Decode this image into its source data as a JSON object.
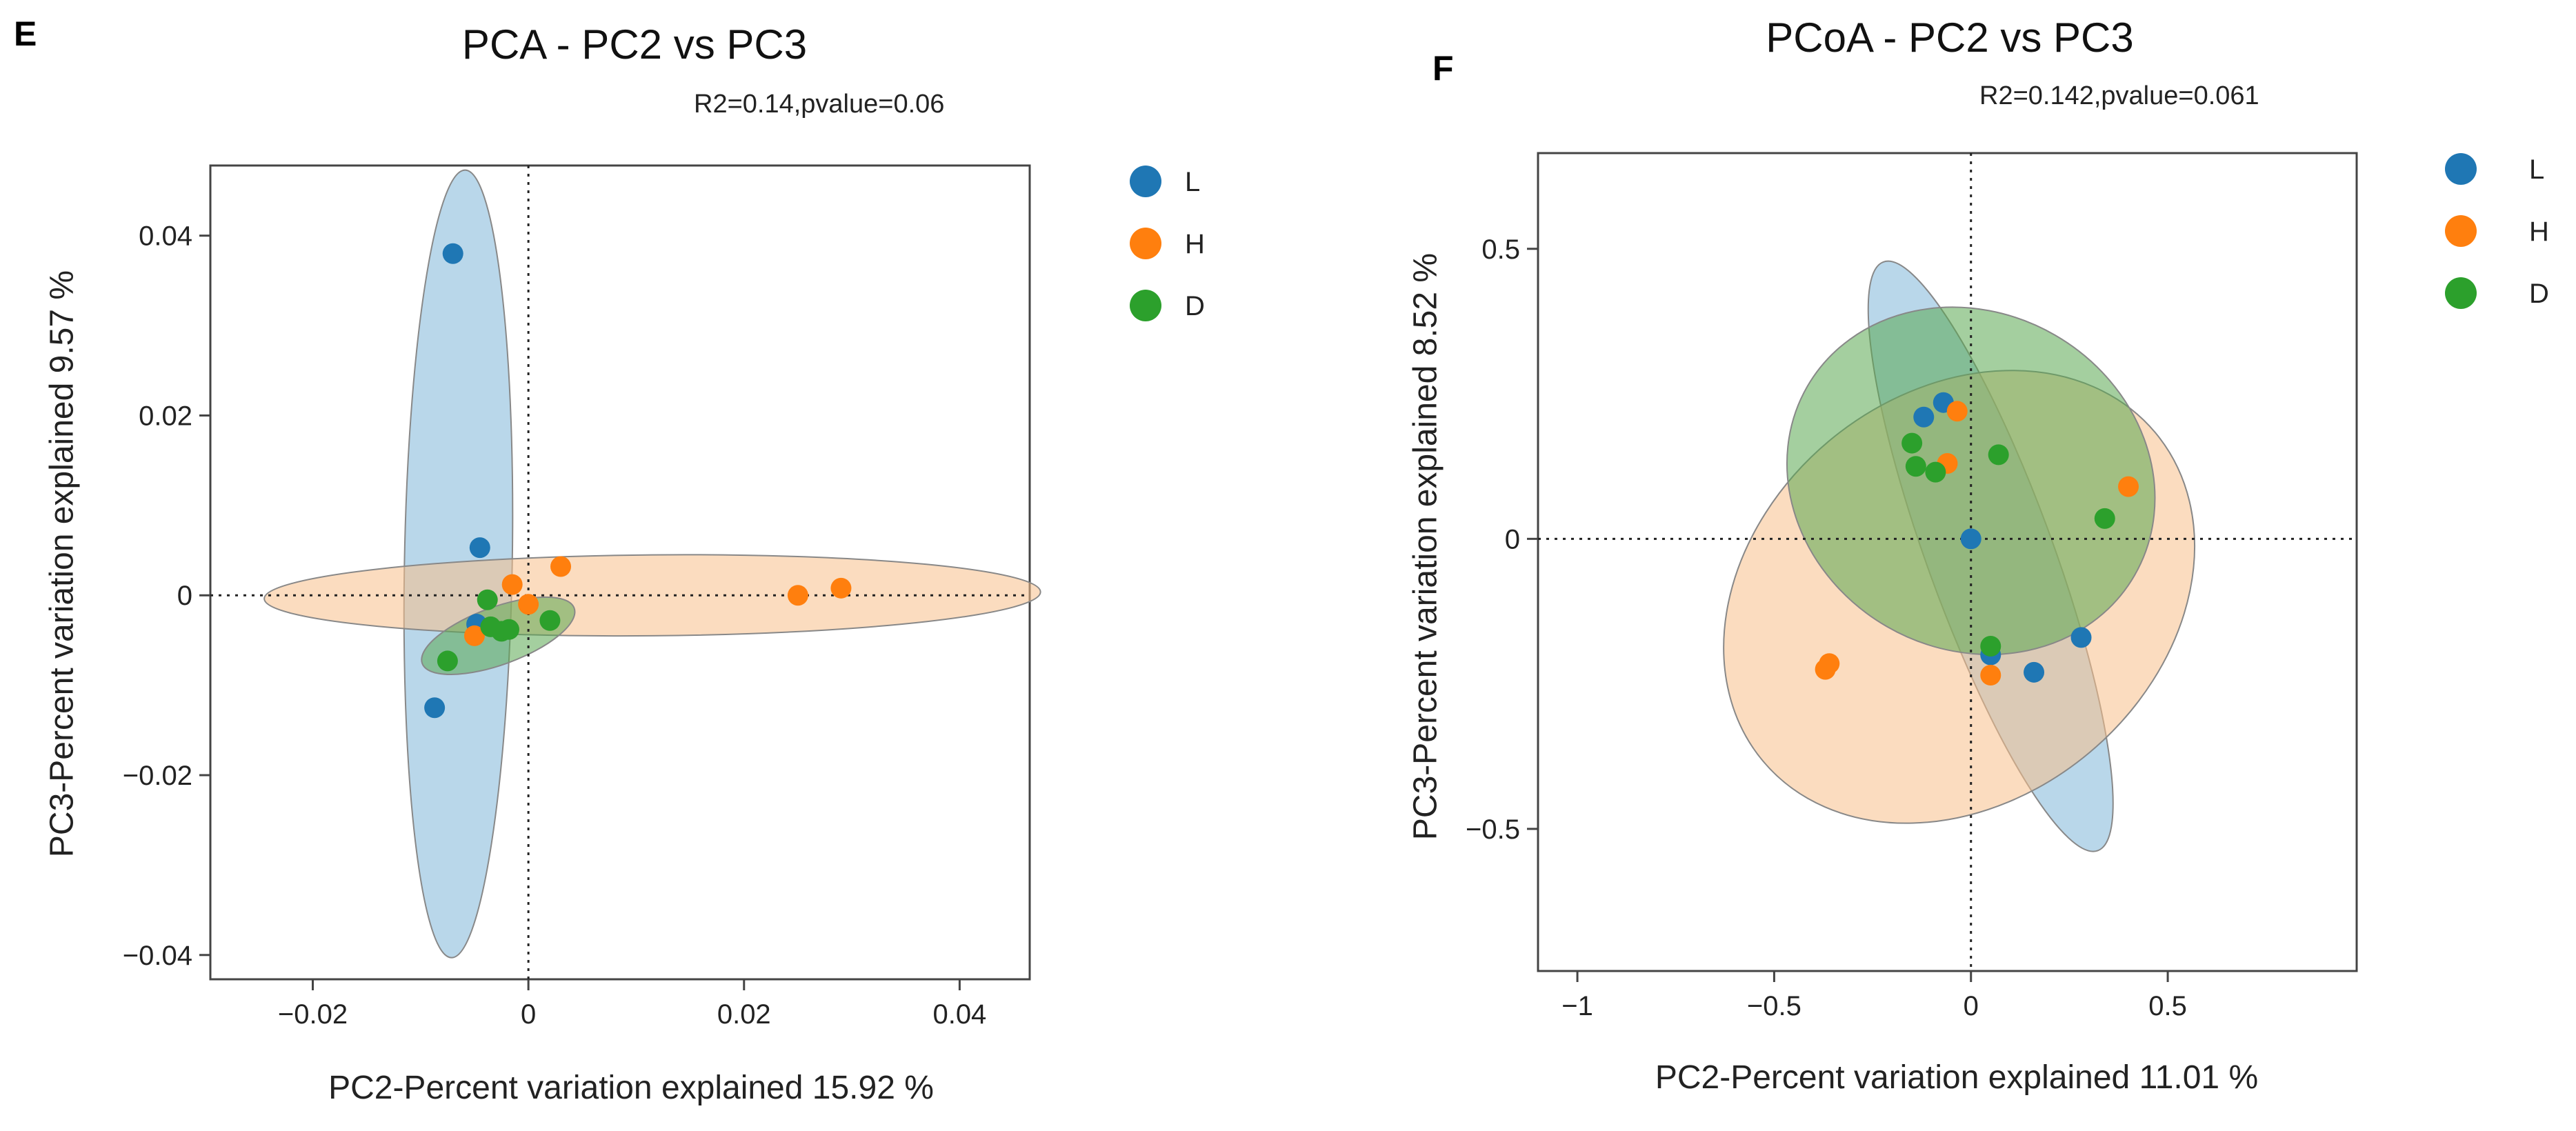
{
  "chart_data": [
    {
      "type": "scatter",
      "panel_letter": "E",
      "title": "PCA - PC2 vs PC3",
      "stats_text": "R2=0.14,pvalue=0.06",
      "xlabel": "PC2-Percent variation explained 15.92 %",
      "ylabel": "PC3-Percent variation explained 9.57 %",
      "xlim": [
        -0.0295,
        0.0465
      ],
      "ylim": [
        -0.0427,
        0.0478
      ],
      "xticks": [
        -0.02,
        0,
        0.02,
        0.04
      ],
      "xtick_labels": [
        "−0.02",
        "0",
        "0.02",
        "0.04"
      ],
      "yticks": [
        -0.04,
        -0.02,
        0,
        0.02,
        0.04
      ],
      "ytick_labels": [
        "−0.04",
        "−0.02",
        "0",
        "0.02",
        "0.04"
      ],
      "zero_lines": true,
      "legend_position": "right",
      "series": [
        {
          "name": "L",
          "color": "#1f77b4",
          "fill": "#7fb6d9",
          "points": [
            [
              -0.007,
              0.038
            ],
            [
              -0.0045,
              0.0053
            ],
            [
              -0.0087,
              -0.0125
            ],
            [
              -0.0048,
              -0.0032
            ]
          ],
          "ellipse": {
            "cx": -0.0065,
            "cy": 0.0035,
            "rx": 0.005,
            "ry": 0.0438,
            "angle": -1
          }
        },
        {
          "name": "H",
          "color": "#ff7f0e",
          "fill": "#f8c08a",
          "points": [
            [
              -0.0015,
              0.0012
            ],
            [
              0.003,
              0.0032
            ],
            [
              0.0,
              -0.001
            ],
            [
              -0.005,
              -0.0045
            ],
            [
              0.025,
              0.0
            ],
            [
              0.029,
              0.0008
            ]
          ],
          "ellipse": {
            "cx": 0.0115,
            "cy": 0.0,
            "rx": 0.036,
            "ry": 0.0045,
            "angle": 0.5
          }
        },
        {
          "name": "D",
          "color": "#2ca02c",
          "fill": "#5aa850",
          "points": [
            [
              -0.0038,
              -0.0005
            ],
            [
              -0.0035,
              -0.0035
            ],
            [
              -0.0025,
              -0.004
            ],
            [
              -0.0018,
              -0.0038
            ],
            [
              0.002,
              -0.0028
            ],
            [
              -0.0075,
              -0.0073
            ]
          ],
          "ellipse": {
            "cx": -0.0028,
            "cy": -0.0045,
            "rx": 0.0075,
            "ry": 0.0032,
            "angle": 20
          }
        }
      ]
    },
    {
      "type": "scatter",
      "panel_letter": "F",
      "title": "PCoA - PC2 vs PC3",
      "stats_text": "R2=0.142,pvalue=0.061",
      "xlabel": "PC2-Percent variation explained 11.01 %",
      "ylabel": "PC3-Percent variation explained 8.52 %",
      "xlim": [
        -1.1,
        0.98
      ],
      "ylim": [
        -0.745,
        0.665
      ],
      "xticks": [
        -1,
        -0.5,
        0,
        0.5
      ],
      "xtick_labels": [
        "−1",
        "−0.5",
        "0",
        "0.5"
      ],
      "yticks": [
        -0.5,
        0,
        0.5
      ],
      "ytick_labels": [
        "−0.5",
        "0",
        "0.5"
      ],
      "zero_lines": true,
      "legend_position": "right",
      "series": [
        {
          "name": "L",
          "color": "#1f77b4",
          "fill": "#7fb6d9",
          "points": [
            [
              -0.07,
              0.235
            ],
            [
              -0.12,
              0.21
            ],
            [
              0.0,
              0.0
            ],
            [
              0.05,
              -0.2
            ],
            [
              0.16,
              -0.23
            ],
            [
              0.28,
              -0.17
            ]
          ],
          "ellipse": {
            "cx": 0.05,
            "cy": -0.03,
            "rx": 0.16,
            "ry": 0.54,
            "angle": 20
          }
        },
        {
          "name": "H",
          "color": "#ff7f0e",
          "fill": "#f8c08a",
          "points": [
            [
              -0.035,
              0.22
            ],
            [
              -0.06,
              0.13
            ],
            [
              0.4,
              0.09
            ],
            [
              0.05,
              -0.235
            ],
            [
              -0.37,
              -0.225
            ],
            [
              -0.36,
              -0.215
            ]
          ],
          "ellipse": {
            "cx": -0.03,
            "cy": -0.1,
            "rx": 0.65,
            "ry": 0.35,
            "angle": 40
          }
        },
        {
          "name": "D",
          "color": "#2ca02c",
          "fill": "#5aa850",
          "points": [
            [
              -0.15,
              0.165
            ],
            [
              -0.14,
              0.125
            ],
            [
              -0.09,
              0.115
            ],
            [
              0.07,
              0.145
            ],
            [
              0.34,
              0.035
            ],
            [
              0.05,
              -0.185
            ]
          ],
          "ellipse": {
            "cx": 0.0,
            "cy": 0.1,
            "rx": 0.48,
            "ry": 0.29,
            "angle": -30
          }
        }
      ]
    }
  ]
}
